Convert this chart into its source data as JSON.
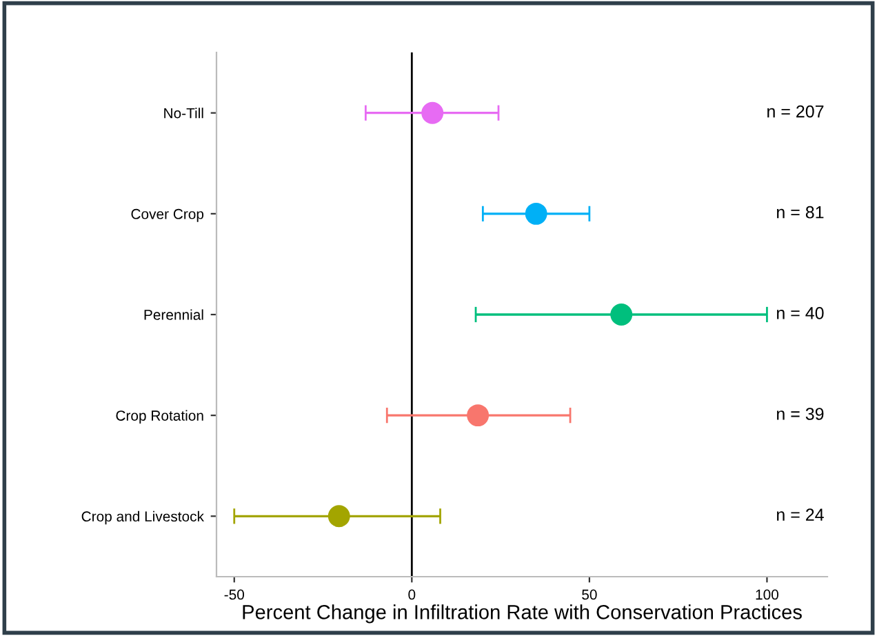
{
  "chart_data": {
    "type": "scatter",
    "orientation": "horizontal",
    "xlabel": "Percent Change in Infiltration Rate with Conservation Practices",
    "categories": [
      "No-Till",
      "Cover Crop",
      "Perennial",
      "Crop Rotation",
      "Crop and Livestock"
    ],
    "values": [
      5.8,
      35,
      59,
      18.6,
      -20.5
    ],
    "errors": [
      [
        -13,
        24.4
      ],
      [
        20,
        50
      ],
      [
        18,
        100
      ],
      [
        -7,
        44.6
      ],
      [
        -50,
        8
      ]
    ],
    "colors": [
      "#e76bf3",
      "#00b0f6",
      "#00bf7d",
      "#f8766d",
      "#a3a500"
    ],
    "marker": "circle",
    "grid": false,
    "xlim": [
      -55,
      117
    ],
    "xticks": [
      -50,
      0,
      50,
      100
    ],
    "ref_lines": [
      {
        "axis": "x",
        "value": 0,
        "color": "#000000"
      }
    ],
    "annotations": [
      "n = 207",
      "n = 81",
      "n = 40",
      "n = 39",
      "n = 24"
    ]
  }
}
